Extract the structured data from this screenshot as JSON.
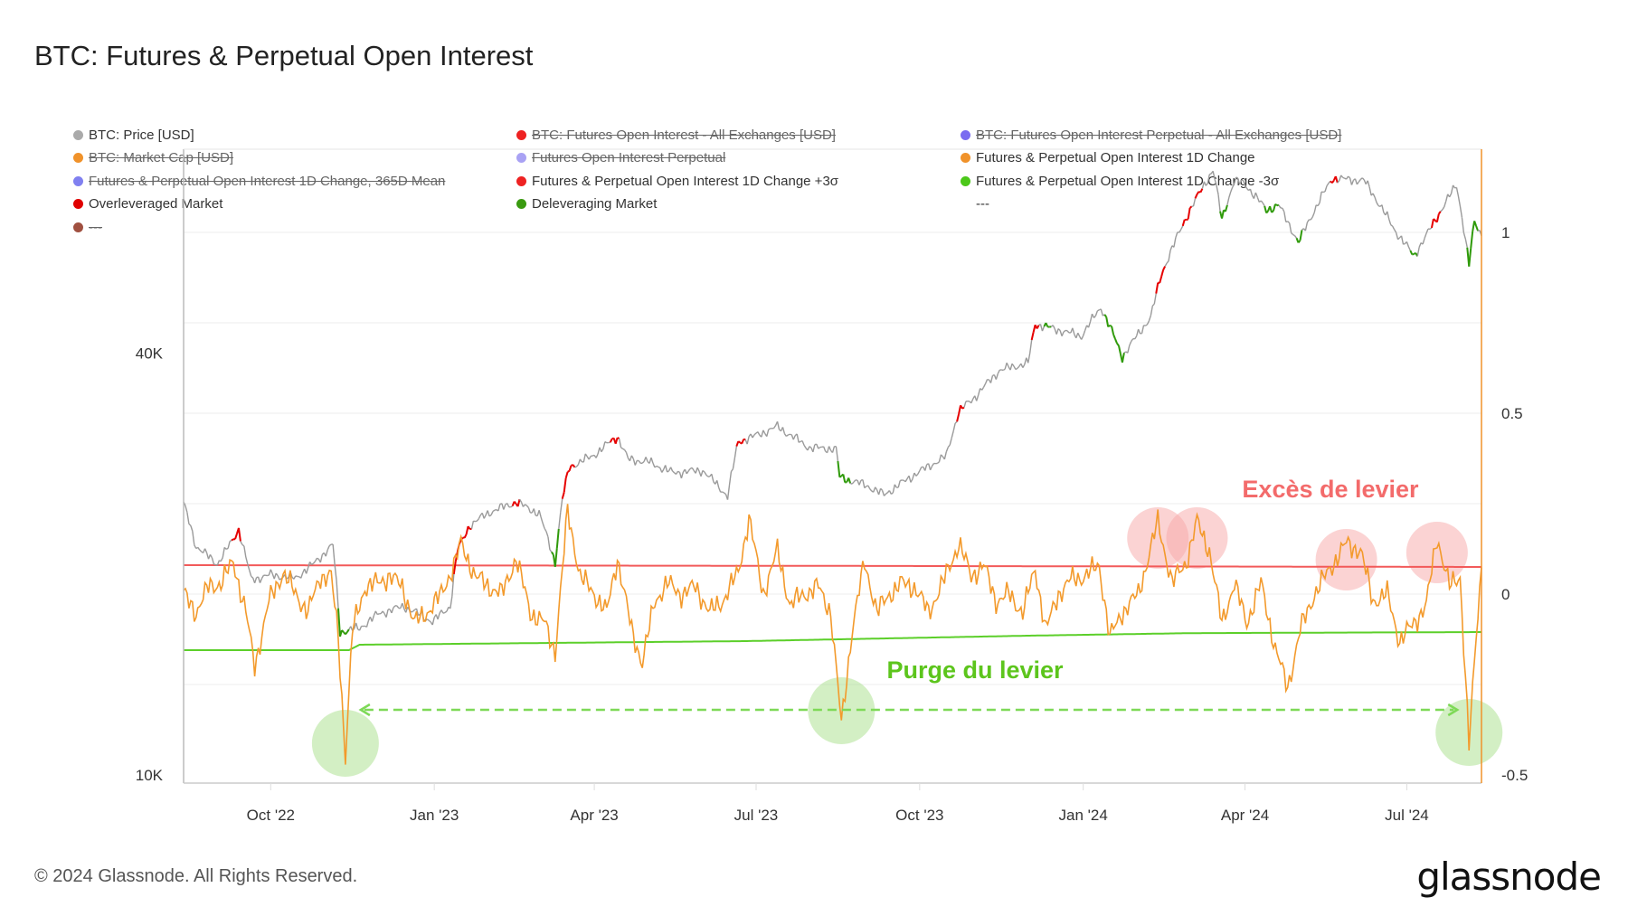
{
  "title": "BTC: Futures & Perpetual Open Interest",
  "legend": [
    {
      "label": "BTC: Price [USD]",
      "color": "#aaaaaa",
      "struck": false
    },
    {
      "label": "BTC: Futures Open Interest - All Exchanges [USD]",
      "color": "#ee2222",
      "struck": true
    },
    {
      "label": "BTC: Futures Open Interest Perpetual - All Exchanges [USD]",
      "color": "#7a6cf0",
      "struck": true
    },
    {
      "label": "BTC: Market Cap [USD]",
      "color": "#f0922a",
      "struck": true
    },
    {
      "label": "Futures Open Interest Perpetual",
      "color": "#a9a2f4",
      "struck": true
    },
    {
      "label": "Futures & Perpetual Open Interest 1D Change",
      "color": "#f0922a",
      "struck": false
    },
    {
      "label": "Futures & Perpetual Open Interest 1D Change, 365D Mean",
      "color": "#8080f0",
      "struck": true
    },
    {
      "label": "Futures & Perpetual Open Interest 1D Change +3σ",
      "color": "#ee2222",
      "struck": false
    },
    {
      "label": "Futures & Perpetual Open Interest 1D Change -3σ",
      "color": "#4cc81a",
      "struck": false
    },
    {
      "label": "Overleveraged Market",
      "color": "#e00000",
      "struck": false
    },
    {
      "label": "Deleveraging Market",
      "color": "#3a9a10",
      "struck": false
    },
    {
      "label": "---",
      "color": "",
      "struck": false
    },
    {
      "label": "---",
      "color": "#a05040",
      "struck": true
    }
  ],
  "chart_data": {
    "type": "line",
    "title": "BTC: Futures & Perpetual Open Interest",
    "x_ticks": [
      "Oct '22",
      "Jan '23",
      "Apr '23",
      "Jul '23",
      "Oct '23",
      "Jan '24",
      "Apr '24",
      "Jul '24"
    ],
    "x_range": [
      "2022-08-13",
      "2024-08-12"
    ],
    "y_left": {
      "scale": "log",
      "ticks": [
        "10K",
        "40K"
      ],
      "tick_values": [
        10000,
        40000
      ]
    },
    "y_right": {
      "scale": "linear",
      "ticks": [
        "1",
        "0.5",
        "0",
        "-0.5"
      ],
      "tick_values": [
        1,
        0.5,
        0,
        -0.5
      ],
      "range": [
        -0.5,
        1.23
      ]
    },
    "grid": true,
    "legend_placement": "top",
    "colors": {
      "price": "#9a9a9a",
      "oi_change": "#f39a2c",
      "upper_band": "#f25a5a",
      "lower_band": "#5ccf2a",
      "overleveraged": "#e60000",
      "deleveraging": "#2f9a0a"
    },
    "price": [
      [
        "2022-08-13",
        24400
      ],
      [
        "2022-08-20",
        21200
      ],
      [
        "2022-09-01",
        20000
      ],
      [
        "2022-09-09",
        21500
      ],
      [
        "2022-09-13",
        22400
      ],
      [
        "2022-09-20",
        19000
      ],
      [
        "2022-10-01",
        19300
      ],
      [
        "2022-10-15",
        19100
      ],
      [
        "2022-10-25",
        20000
      ],
      [
        "2022-11-05",
        21300
      ],
      [
        "2022-11-09",
        16000
      ],
      [
        "2022-11-20",
        16200
      ],
      [
        "2022-12-01",
        17000
      ],
      [
        "2022-12-15",
        17400
      ],
      [
        "2022-12-31",
        16550
      ],
      [
        "2023-01-10",
        17400
      ],
      [
        "2023-01-14",
        20900
      ],
      [
        "2023-01-21",
        22700
      ],
      [
        "2023-02-01",
        23700
      ],
      [
        "2023-02-16",
        24500
      ],
      [
        "2023-03-01",
        23600
      ],
      [
        "2023-03-10",
        20100
      ],
      [
        "2023-03-14",
        24700
      ],
      [
        "2023-03-18",
        27500
      ],
      [
        "2023-03-31",
        28500
      ],
      [
        "2023-04-14",
        30400
      ],
      [
        "2023-04-20",
        28200
      ],
      [
        "2023-05-01",
        28000
      ],
      [
        "2023-05-15",
        27000
      ],
      [
        "2023-06-01",
        27200
      ],
      [
        "2023-06-15",
        25000
      ],
      [
        "2023-06-21",
        29900
      ],
      [
        "2023-07-01",
        30500
      ],
      [
        "2023-07-13",
        31400
      ],
      [
        "2023-07-31",
        29300
      ],
      [
        "2023-08-15",
        29200
      ],
      [
        "2023-08-17",
        26600
      ],
      [
        "2023-09-01",
        25900
      ],
      [
        "2023-09-11",
        25100
      ],
      [
        "2023-09-30",
        27000
      ],
      [
        "2023-10-16",
        28500
      ],
      [
        "2023-10-23",
        33000
      ],
      [
        "2023-11-01",
        34600
      ],
      [
        "2023-11-15",
        37800
      ],
      [
        "2023-12-01",
        38700
      ],
      [
        "2023-12-05",
        44000
      ],
      [
        "2023-12-31",
        42300
      ],
      [
        "2024-01-11",
        46500
      ],
      [
        "2024-01-23",
        39500
      ],
      [
        "2024-02-08",
        45000
      ],
      [
        "2024-02-14",
        51800
      ],
      [
        "2024-02-28",
        62500
      ],
      [
        "2024-03-14",
        73000
      ],
      [
        "2024-03-19",
        62000
      ],
      [
        "2024-03-26",
        70500
      ],
      [
        "2024-04-01",
        69700
      ],
      [
        "2024-04-13",
        64000
      ],
      [
        "2024-04-20",
        65000
      ],
      [
        "2024-05-01",
        57500
      ],
      [
        "2024-05-20",
        71000
      ],
      [
        "2024-06-07",
        70500
      ],
      [
        "2024-06-24",
        60000
      ],
      [
        "2024-07-05",
        55000
      ],
      [
        "2024-07-14",
        60000
      ],
      [
        "2024-07-29",
        69500
      ],
      [
        "2024-08-05",
        53500
      ],
      [
        "2024-08-08",
        61500
      ],
      [
        "2024-08-12",
        59000
      ]
    ],
    "overleveraged_periods": [
      [
        "2022-09-09",
        "2022-09-13"
      ],
      [
        "2023-01-12",
        "2023-01-21"
      ],
      [
        "2023-02-14",
        "2023-02-17"
      ],
      [
        "2023-03-14",
        "2023-03-20"
      ],
      [
        "2023-04-10",
        "2023-04-14"
      ],
      [
        "2023-06-20",
        "2023-06-24"
      ],
      [
        "2023-10-22",
        "2023-10-25"
      ],
      [
        "2023-12-03",
        "2023-12-06"
      ],
      [
        "2024-02-11",
        "2024-02-15"
      ],
      [
        "2024-02-26",
        "2024-03-01"
      ],
      [
        "2024-03-04",
        "2024-03-07"
      ],
      [
        "2024-05-19",
        "2024-05-22"
      ],
      [
        "2024-07-15",
        "2024-07-19"
      ]
    ],
    "deleveraging_periods": [
      [
        "2022-11-08",
        "2022-11-13"
      ],
      [
        "2023-03-08",
        "2023-03-11"
      ],
      [
        "2023-08-16",
        "2023-08-22"
      ],
      [
        "2023-12-10",
        "2023-12-13"
      ],
      [
        "2024-01-13",
        "2024-01-23"
      ],
      [
        "2024-03-18",
        "2024-03-21"
      ],
      [
        "2024-04-12",
        "2024-04-19"
      ],
      [
        "2024-04-30",
        "2024-05-02"
      ],
      [
        "2024-07-03",
        "2024-07-06"
      ],
      [
        "2024-08-04",
        "2024-08-09"
      ]
    ],
    "oi_change": [
      [
        "2022-08-13",
        0.0
      ],
      [
        "2022-08-20",
        -0.05
      ],
      [
        "2022-08-27",
        0.02
      ],
      [
        "2022-09-03",
        0.03
      ],
      [
        "2022-09-10",
        0.09
      ],
      [
        "2022-09-17",
        -0.05
      ],
      [
        "2022-09-22",
        -0.2
      ],
      [
        "2022-09-30",
        -0.02
      ],
      [
        "2022-10-08",
        0.06
      ],
      [
        "2022-10-15",
        0.0
      ],
      [
        "2022-10-22",
        -0.05
      ],
      [
        "2022-10-29",
        0.05
      ],
      [
        "2022-11-04",
        0.05
      ],
      [
        "2022-11-08",
        -0.12
      ],
      [
        "2022-11-12",
        -0.45
      ],
      [
        "2022-11-16",
        -0.1
      ],
      [
        "2022-11-23",
        0.02
      ],
      [
        "2022-11-30",
        0.03
      ],
      [
        "2022-12-07",
        0.05
      ],
      [
        "2022-12-14",
        0.02
      ],
      [
        "2022-12-21",
        -0.08
      ],
      [
        "2022-12-28",
        -0.05
      ],
      [
        "2023-01-05",
        0.0
      ],
      [
        "2023-01-12",
        0.08
      ],
      [
        "2023-01-16",
        0.14
      ],
      [
        "2023-01-24",
        0.05
      ],
      [
        "2023-02-01",
        0.02
      ],
      [
        "2023-02-08",
        0.0
      ],
      [
        "2023-02-16",
        0.1
      ],
      [
        "2023-02-24",
        -0.05
      ],
      [
        "2023-03-04",
        -0.08
      ],
      [
        "2023-03-10",
        -0.16
      ],
      [
        "2023-03-17",
        0.23
      ],
      [
        "2023-03-24",
        0.05
      ],
      [
        "2023-04-01",
        0.0
      ],
      [
        "2023-04-08",
        -0.05
      ],
      [
        "2023-04-14",
        0.1
      ],
      [
        "2023-04-22",
        -0.1
      ],
      [
        "2023-04-28",
        -0.19
      ],
      [
        "2023-05-05",
        -0.02
      ],
      [
        "2023-05-12",
        0.03
      ],
      [
        "2023-05-20",
        0.0
      ],
      [
        "2023-05-28",
        0.02
      ],
      [
        "2023-06-05",
        -0.05
      ],
      [
        "2023-06-12",
        -0.02
      ],
      [
        "2023-06-21",
        0.06
      ],
      [
        "2023-06-27",
        0.21
      ],
      [
        "2023-07-05",
        0.0
      ],
      [
        "2023-07-13",
        0.12
      ],
      [
        "2023-07-20",
        -0.03
      ],
      [
        "2023-07-28",
        0.0
      ],
      [
        "2023-08-05",
        0.02
      ],
      [
        "2023-08-12",
        -0.05
      ],
      [
        "2023-08-18",
        -0.36
      ],
      [
        "2023-08-24",
        -0.1
      ],
      [
        "2023-08-31",
        0.09
      ],
      [
        "2023-09-07",
        -0.05
      ],
      [
        "2023-09-14",
        0.0
      ],
      [
        "2023-09-21",
        0.03
      ],
      [
        "2023-09-28",
        0.02
      ],
      [
        "2023-10-06",
        -0.05
      ],
      [
        "2023-10-14",
        0.03
      ],
      [
        "2023-10-23",
        0.14
      ],
      [
        "2023-10-30",
        0.05
      ],
      [
        "2023-11-06",
        0.08
      ],
      [
        "2023-11-13",
        -0.02
      ],
      [
        "2023-11-20",
        0.0
      ],
      [
        "2023-11-28",
        -0.05
      ],
      [
        "2023-12-05",
        0.07
      ],
      [
        "2023-12-11",
        -0.1
      ],
      [
        "2023-12-18",
        0.0
      ],
      [
        "2023-12-25",
        0.04
      ],
      [
        "2024-01-02",
        0.05
      ],
      [
        "2024-01-10",
        0.08
      ],
      [
        "2024-01-16",
        -0.12
      ],
      [
        "2024-01-23",
        -0.05
      ],
      [
        "2024-02-01",
        0.0
      ],
      [
        "2024-02-12",
        0.2
      ],
      [
        "2024-02-20",
        0.03
      ],
      [
        "2024-02-28",
        0.09
      ],
      [
        "2024-03-05",
        0.2
      ],
      [
        "2024-03-12",
        0.12
      ],
      [
        "2024-03-19",
        -0.08
      ],
      [
        "2024-03-26",
        0.03
      ],
      [
        "2024-04-02",
        -0.08
      ],
      [
        "2024-04-10",
        0.03
      ],
      [
        "2024-04-18",
        -0.15
      ],
      [
        "2024-04-25",
        -0.26
      ],
      [
        "2024-05-02",
        -0.1
      ],
      [
        "2024-05-10",
        0.0
      ],
      [
        "2024-05-20",
        0.08
      ],
      [
        "2024-05-28",
        0.14
      ],
      [
        "2024-06-05",
        0.12
      ],
      [
        "2024-06-12",
        -0.02
      ],
      [
        "2024-06-20",
        0.0
      ],
      [
        "2024-06-27",
        -0.13
      ],
      [
        "2024-07-05",
        -0.08
      ],
      [
        "2024-07-12",
        -0.03
      ],
      [
        "2024-07-18",
        0.16
      ],
      [
        "2024-07-25",
        0.02
      ],
      [
        "2024-07-31",
        0.05
      ],
      [
        "2024-08-05",
        -0.42
      ],
      [
        "2024-08-09",
        -0.12
      ],
      [
        "2024-08-12",
        0.08
      ]
    ],
    "upper_band": [
      [
        "2022-08-13",
        0.08
      ],
      [
        "2023-08-13",
        0.078
      ],
      [
        "2024-08-12",
        0.075
      ]
    ],
    "lower_band": [
      [
        "2022-08-13",
        -0.155
      ],
      [
        "2022-11-14",
        -0.155
      ],
      [
        "2022-11-20",
        -0.14
      ],
      [
        "2023-06-25",
        -0.13
      ],
      [
        "2023-12-01",
        -0.115
      ],
      [
        "2024-03-01",
        -0.108
      ],
      [
        "2024-08-12",
        -0.105
      ]
    ],
    "annotations": {
      "overleveraged_text": "Excès de levier",
      "overleveraged_color": "#f36b6b",
      "deleveraging_text": "Purge du levier",
      "deleveraging_color": "#5cc51c",
      "overleveraged_dates": [
        "2024-02-12",
        "2024-03-05",
        "2024-05-28",
        "2024-07-18"
      ],
      "deleveraging_dates": [
        "2022-11-12",
        "2023-08-18",
        "2024-08-05"
      ]
    }
  },
  "footer": {
    "copyright": "© 2024 Glassnode. All Rights Reserved.",
    "brand": "glassnode"
  }
}
